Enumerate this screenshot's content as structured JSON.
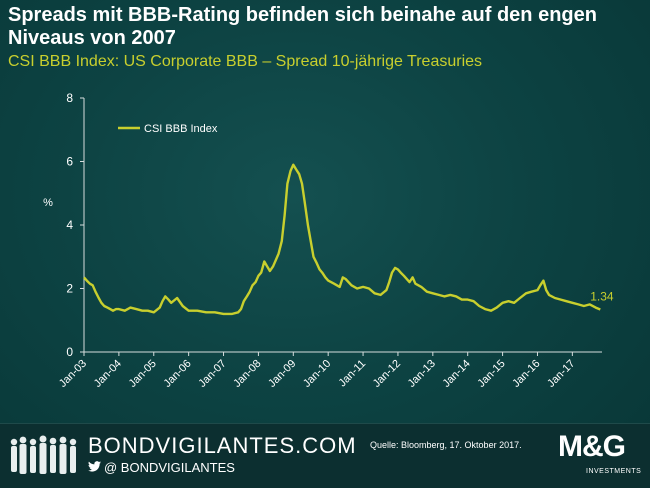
{
  "header": {
    "title": "Spreads mit BBB-Rating befinden sich beinahe auf den engen Niveaus von 2007",
    "subtitle": "CSI BBB Index: US Corporate BBB – Spread 10-jährige Treasuries"
  },
  "chart_data": {
    "type": "line",
    "title": "CSI BBB Index: US Corporate BBB – Spread 10-jährige Treasuries",
    "xlabel": "",
    "ylabel": "%",
    "ylim": [
      0,
      8
    ],
    "yticks": [
      0,
      2,
      4,
      6,
      8
    ],
    "xlim": [
      2003.0,
      2017.85
    ],
    "xticks": [
      {
        "value": 2003,
        "label": "Jan-03"
      },
      {
        "value": 2004,
        "label": "Jan-04"
      },
      {
        "value": 2005,
        "label": "Jan-05"
      },
      {
        "value": 2006,
        "label": "Jan-06"
      },
      {
        "value": 2007,
        "label": "Jan-07"
      },
      {
        "value": 2008,
        "label": "Jan-08"
      },
      {
        "value": 2009,
        "label": "Jan-09"
      },
      {
        "value": 2010,
        "label": "Jan-10"
      },
      {
        "value": 2011,
        "label": "Jan-11"
      },
      {
        "value": 2012,
        "label": "Jan-12"
      },
      {
        "value": 2013,
        "label": "Jan-13"
      },
      {
        "value": 2014,
        "label": "Jan-14"
      },
      {
        "value": 2015,
        "label": "Jan-15"
      },
      {
        "value": 2016,
        "label": "Jan-16"
      },
      {
        "value": 2017,
        "label": "Jan-17"
      }
    ],
    "grid": false,
    "legend": {
      "position": "top-left",
      "entries": [
        "CSI BBB Index"
      ]
    },
    "series": [
      {
        "name": "CSI BBB Index",
        "color": "#c8cf2e",
        "x": [
          2003.0,
          2003.08,
          2003.17,
          2003.25,
          2003.33,
          2003.42,
          2003.5,
          2003.58,
          2003.67,
          2003.75,
          2003.83,
          2003.92,
          2004.0,
          2004.17,
          2004.33,
          2004.5,
          2004.67,
          2004.83,
          2005.0,
          2005.17,
          2005.25,
          2005.33,
          2005.42,
          2005.5,
          2005.67,
          2005.83,
          2006.0,
          2006.25,
          2006.5,
          2006.75,
          2007.0,
          2007.25,
          2007.42,
          2007.5,
          2007.58,
          2007.67,
          2007.75,
          2007.83,
          2007.92,
          2008.0,
          2008.08,
          2008.17,
          2008.25,
          2008.33,
          2008.42,
          2008.5,
          2008.58,
          2008.67,
          2008.75,
          2008.83,
          2008.92,
          2009.0,
          2009.08,
          2009.17,
          2009.25,
          2009.33,
          2009.42,
          2009.5,
          2009.58,
          2009.67,
          2009.75,
          2009.83,
          2009.92,
          2010.0,
          2010.17,
          2010.33,
          2010.42,
          2010.5,
          2010.67,
          2010.83,
          2011.0,
          2011.17,
          2011.33,
          2011.5,
          2011.67,
          2011.75,
          2011.83,
          2011.92,
          2012.0,
          2012.08,
          2012.17,
          2012.33,
          2012.42,
          2012.5,
          2012.67,
          2012.83,
          2013.0,
          2013.17,
          2013.33,
          2013.5,
          2013.67,
          2013.83,
          2014.0,
          2014.17,
          2014.33,
          2014.5,
          2014.67,
          2014.83,
          2015.0,
          2015.17,
          2015.33,
          2015.5,
          2015.67,
          2015.83,
          2016.0,
          2016.08,
          2016.17,
          2016.25,
          2016.33,
          2016.5,
          2016.67,
          2016.83,
          2017.0,
          2017.17,
          2017.33,
          2017.5,
          2017.67,
          2017.8
        ],
        "values": [
          2.35,
          2.25,
          2.15,
          2.1,
          1.9,
          1.7,
          1.55,
          1.45,
          1.4,
          1.35,
          1.3,
          1.35,
          1.35,
          1.3,
          1.4,
          1.35,
          1.3,
          1.3,
          1.25,
          1.4,
          1.6,
          1.75,
          1.65,
          1.55,
          1.7,
          1.45,
          1.3,
          1.3,
          1.25,
          1.25,
          1.2,
          1.2,
          1.25,
          1.35,
          1.6,
          1.75,
          1.9,
          2.1,
          2.2,
          2.4,
          2.5,
          2.85,
          2.7,
          2.55,
          2.7,
          2.9,
          3.1,
          3.5,
          4.3,
          5.3,
          5.7,
          5.9,
          5.75,
          5.6,
          5.3,
          4.7,
          4.0,
          3.5,
          3.0,
          2.8,
          2.6,
          2.5,
          2.35,
          2.25,
          2.15,
          2.05,
          2.35,
          2.3,
          2.1,
          2.0,
          2.05,
          2.0,
          1.85,
          1.8,
          1.95,
          2.2,
          2.5,
          2.65,
          2.6,
          2.5,
          2.4,
          2.2,
          2.35,
          2.15,
          2.05,
          1.9,
          1.85,
          1.8,
          1.75,
          1.8,
          1.75,
          1.65,
          1.65,
          1.6,
          1.45,
          1.35,
          1.3,
          1.4,
          1.55,
          1.6,
          1.55,
          1.7,
          1.85,
          1.9,
          1.95,
          2.1,
          2.25,
          1.95,
          1.8,
          1.7,
          1.65,
          1.6,
          1.55,
          1.5,
          1.45,
          1.5,
          1.4,
          1.34
        ]
      }
    ],
    "annotations": [
      {
        "text": "1.34"
      }
    ]
  },
  "footer": {
    "brand": "BONDVIGILANTES.COM",
    "handle": "@ BONDVIGILANTES",
    "source": "Quelle: Bloomberg, 17. Oktober 2017.",
    "logo": "M&G",
    "logo_sub": "INVESTMENTS"
  },
  "icons": {
    "twitter": "twitter-bird-icon",
    "people": "crowd-silhouette-icon"
  }
}
